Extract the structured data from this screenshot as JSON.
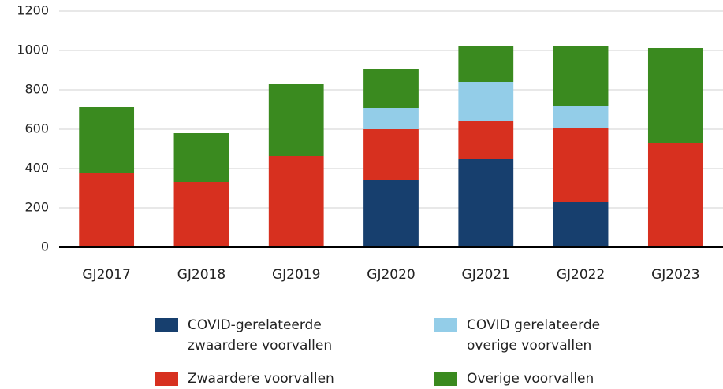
{
  "chart_data": {
    "type": "stacked-bar",
    "categories": [
      "GJ2017",
      "GJ2018",
      "GJ2019",
      "GJ2020",
      "GJ2021",
      "GJ2022",
      "GJ2023"
    ],
    "series": [
      {
        "name": "COVID-gerelateerde zwaardere voorvallen",
        "color": "#173f6e",
        "values": [
          0,
          0,
          0,
          340,
          448,
          228,
          0
        ]
      },
      {
        "name": "Zwaardere voorvallen",
        "color": "#d7301f",
        "values": [
          376,
          332,
          464,
          260,
          192,
          380,
          528
        ]
      },
      {
        "name": "COVID gerelateerde overige voorvallen",
        "color": "#93cde8",
        "values": [
          0,
          0,
          0,
          108,
          200,
          112,
          4
        ]
      },
      {
        "name": "Overige voorvallen",
        "color": "#3a8a1f",
        "values": [
          336,
          248,
          364,
          200,
          180,
          304,
          480
        ]
      }
    ],
    "ylim": [
      0,
      1200
    ],
    "yticks": [
      0,
      200,
      400,
      600,
      800,
      1000,
      1200
    ],
    "grid": true
  }
}
